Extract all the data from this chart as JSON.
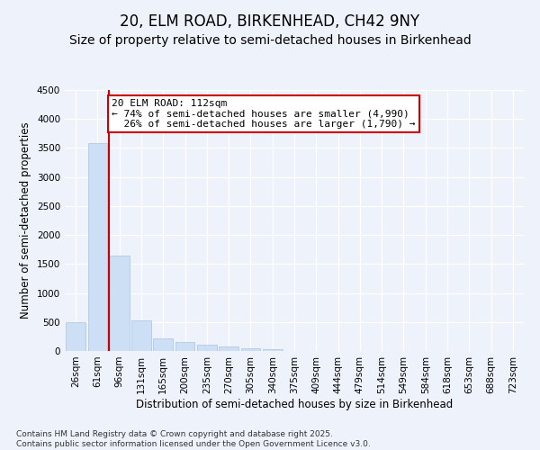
{
  "title": "20, ELM ROAD, BIRKENHEAD, CH42 9NY",
  "subtitle": "Size of property relative to semi-detached houses in Birkenhead",
  "xlabel": "Distribution of semi-detached houses by size in Birkenhead",
  "ylabel": "Number of semi-detached properties",
  "categories": [
    "26sqm",
    "61sqm",
    "96sqm",
    "131sqm",
    "165sqm",
    "200sqm",
    "235sqm",
    "270sqm",
    "305sqm",
    "340sqm",
    "375sqm",
    "409sqm",
    "444sqm",
    "479sqm",
    "514sqm",
    "549sqm",
    "584sqm",
    "618sqm",
    "653sqm",
    "688sqm",
    "723sqm"
  ],
  "values": [
    500,
    3580,
    1650,
    530,
    215,
    155,
    110,
    80,
    50,
    35,
    0,
    0,
    0,
    0,
    0,
    0,
    0,
    0,
    0,
    0,
    0
  ],
  "bar_color": "#ccdff5",
  "bar_edge_color": "#aac4e0",
  "vline_x_index": 2,
  "vline_color": "#cc0000",
  "annotation_text": "20 ELM ROAD: 112sqm\n← 74% of semi-detached houses are smaller (4,990)\n  26% of semi-detached houses are larger (1,790) →",
  "annotation_box_color": "#ffffff",
  "annotation_box_edge": "#cc0000",
  "ylim": [
    0,
    4500
  ],
  "yticks": [
    0,
    500,
    1000,
    1500,
    2000,
    2500,
    3000,
    3500,
    4000,
    4500
  ],
  "footnote": "Contains HM Land Registry data © Crown copyright and database right 2025.\nContains public sector information licensed under the Open Government Licence v3.0.",
  "background_color": "#eef2fa",
  "grid_color": "#ffffff",
  "title_fontsize": 12,
  "subtitle_fontsize": 10,
  "axis_label_fontsize": 8.5,
  "tick_fontsize": 7.5,
  "footnote_fontsize": 6.5,
  "annot_fontsize": 8
}
